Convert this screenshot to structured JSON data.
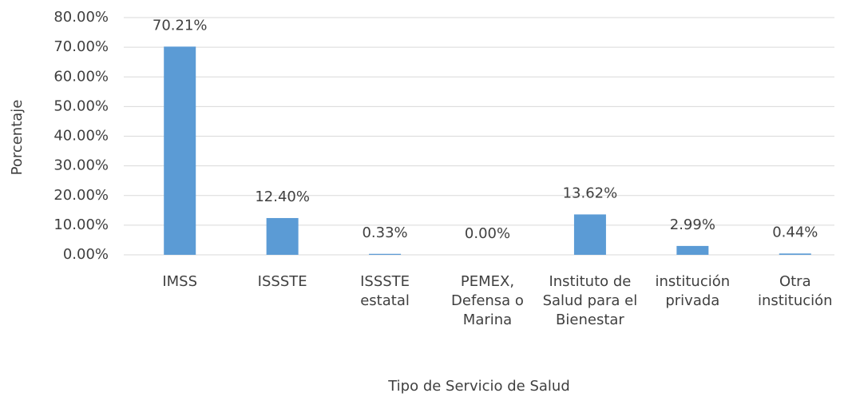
{
  "chart_data": {
    "type": "bar",
    "x_label": "Tipo de Servicio de Salud",
    "y_label": "Porcentaje",
    "categories": [
      "IMSS",
      "ISSSTE",
      "ISSSTE estatal",
      "PEMEX, Defensa o Marina",
      "Instituto de Salud para el Bienestar",
      "institución privada",
      "Otra institución"
    ],
    "values": [
      70.21,
      12.4,
      0.33,
      0.0,
      13.62,
      2.99,
      0.44
    ],
    "value_labels": [
      "70.21%",
      "12.40%",
      "0.33%",
      "0.00%",
      "13.62%",
      "2.99%",
      "0.44%"
    ],
    "color": "#5b9bd5",
    "ylim": [
      0,
      80
    ],
    "yticks": [
      {
        "value": 0,
        "label": "0.00%"
      },
      {
        "value": 10,
        "label": "10.00%"
      },
      {
        "value": 20,
        "label": "20.00%"
      },
      {
        "value": 30,
        "label": "30.00%"
      },
      {
        "value": 40,
        "label": "40.00%"
      },
      {
        "value": 50,
        "label": "50.00%"
      },
      {
        "value": 60,
        "label": "60.00%"
      },
      {
        "value": 70,
        "label": "70.00%"
      },
      {
        "value": 80,
        "label": "80.00%"
      }
    ],
    "grid": true
  }
}
